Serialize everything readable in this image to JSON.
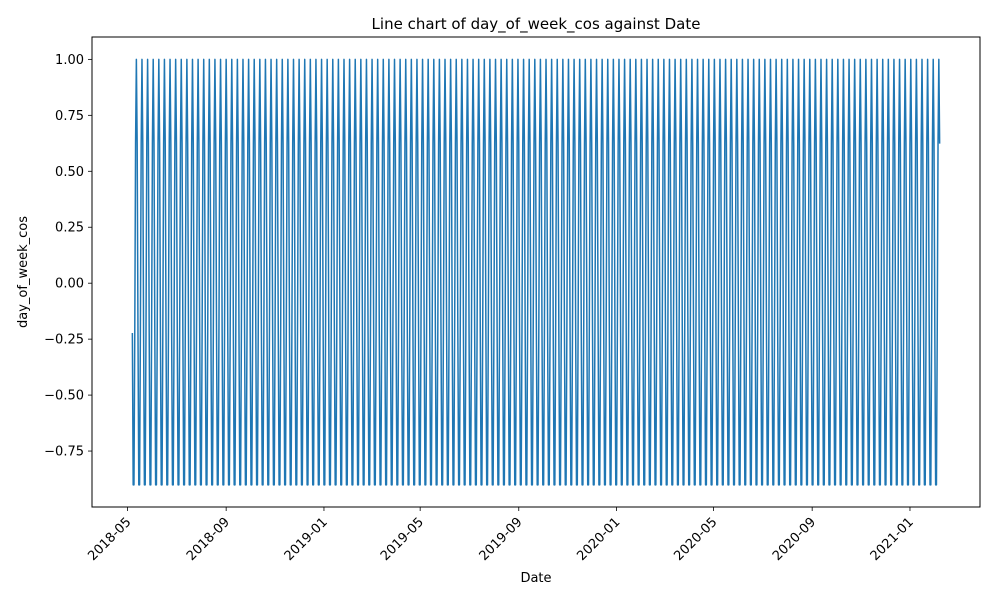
{
  "chart_data": {
    "type": "line",
    "title": "Line chart of day_of_week_cos against Date",
    "xlabel": "Date",
    "ylabel": "day_of_week_cos",
    "x_range": [
      "2018-05-07",
      "2021-02-07"
    ],
    "x_ticks": [
      "2018-05",
      "2018-09",
      "2019-01",
      "2019-05",
      "2019-09",
      "2020-01",
      "2020-05",
      "2020-09",
      "2021-01"
    ],
    "ylim": [
      -1.0,
      1.1
    ],
    "y_ticks": [
      -0.75,
      -0.5,
      -0.25,
      0.0,
      0.25,
      0.5,
      0.75,
      1.0
    ],
    "y_tick_labels": [
      "−0.75",
      "−0.50",
      "−0.25",
      "0.00",
      "0.25",
      "0.50",
      "0.75",
      "1.00"
    ],
    "grid": false,
    "legend": false,
    "series": [
      {
        "color": "#1f77b4",
        "x": "daily dates from 2018-05-07 to 2021-02-07",
        "weekly_cycle_values": [
          -0.2225,
          -0.901,
          -0.901,
          -0.2225,
          0.6235,
          1.0,
          0.6235
        ]
      }
    ]
  }
}
